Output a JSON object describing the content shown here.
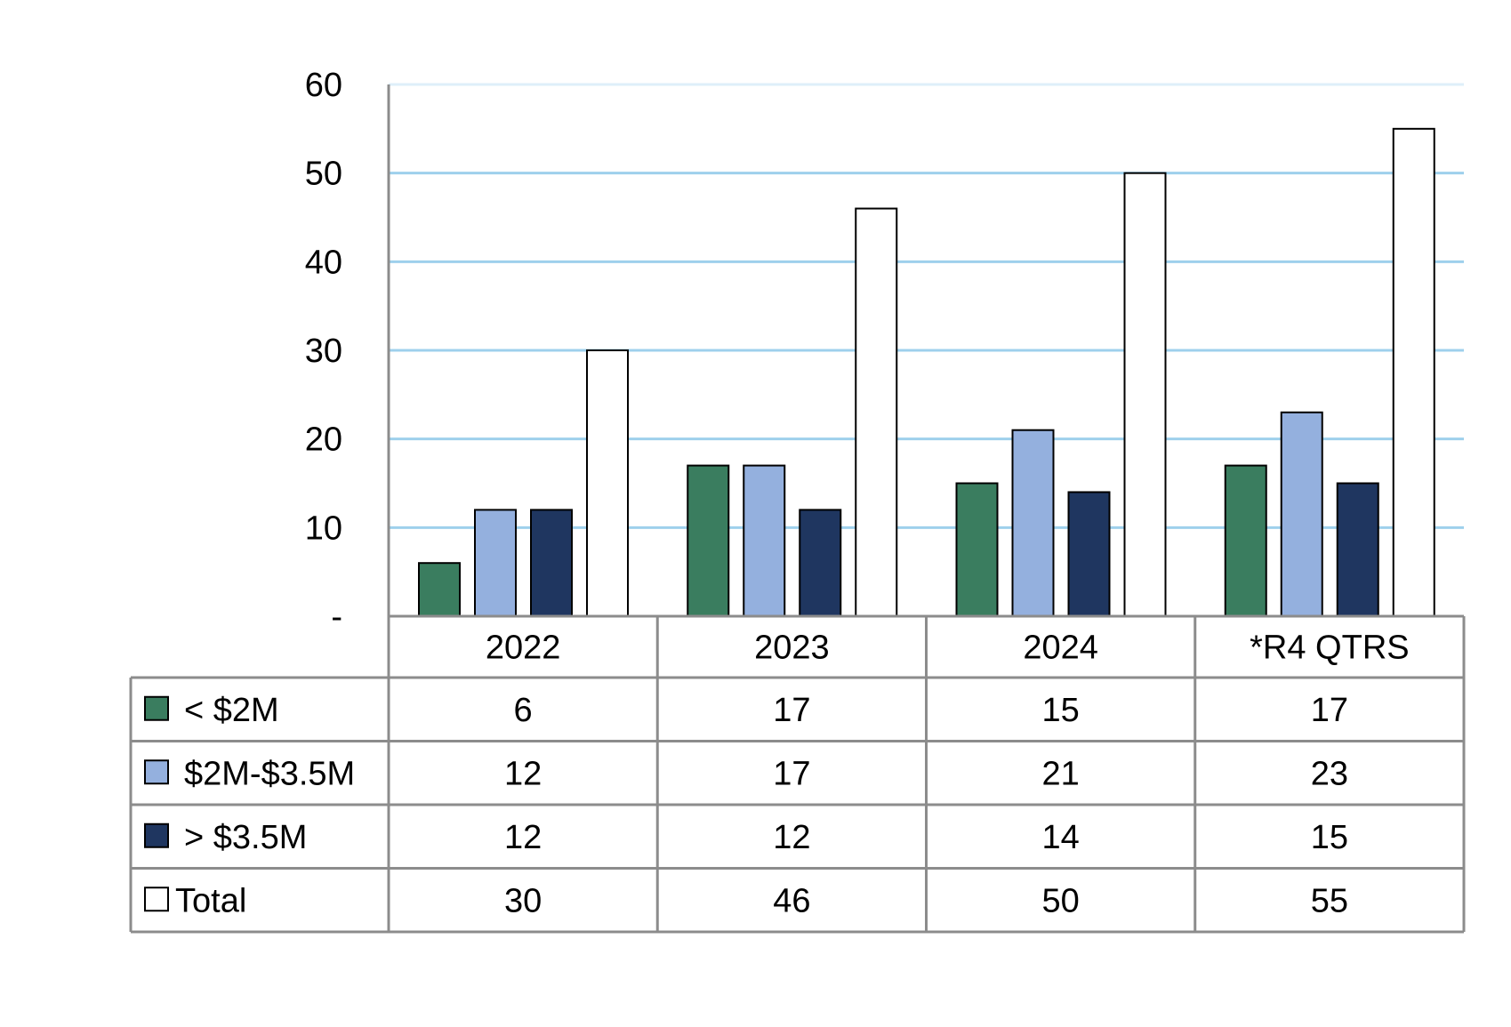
{
  "chart_data": {
    "type": "bar",
    "title": "",
    "xlabel": "",
    "ylabel": "",
    "categories": [
      "2022",
      "2023",
      "2024",
      "*R4 QTRS"
    ],
    "series": [
      {
        "name": "< $2M",
        "values": [
          6,
          17,
          15,
          17
        ],
        "color": "#3a7d5f"
      },
      {
        "name": "$2M-$3.5M",
        "values": [
          12,
          17,
          21,
          23
        ],
        "color": "#94b0de"
      },
      {
        "name": "> $3.5M",
        "values": [
          12,
          12,
          14,
          15
        ],
        "color": "#1f3660"
      },
      {
        "name": "Total",
        "values": [
          30,
          46,
          50,
          55
        ],
        "color": "#ffffff"
      }
    ],
    "ylim": [
      0,
      60
    ],
    "yticks": [
      {
        "value": 0,
        "label": "-"
      },
      {
        "value": 10,
        "label": "10"
      },
      {
        "value": 20,
        "label": "20"
      },
      {
        "value": 30,
        "label": "30"
      },
      {
        "value": 40,
        "label": "40"
      },
      {
        "value": 50,
        "label": "50"
      },
      {
        "value": 60,
        "label": "60"
      }
    ],
    "grid": true,
    "gridline_color": "#7dc0e6",
    "legend": "data-table",
    "data_table": true
  }
}
